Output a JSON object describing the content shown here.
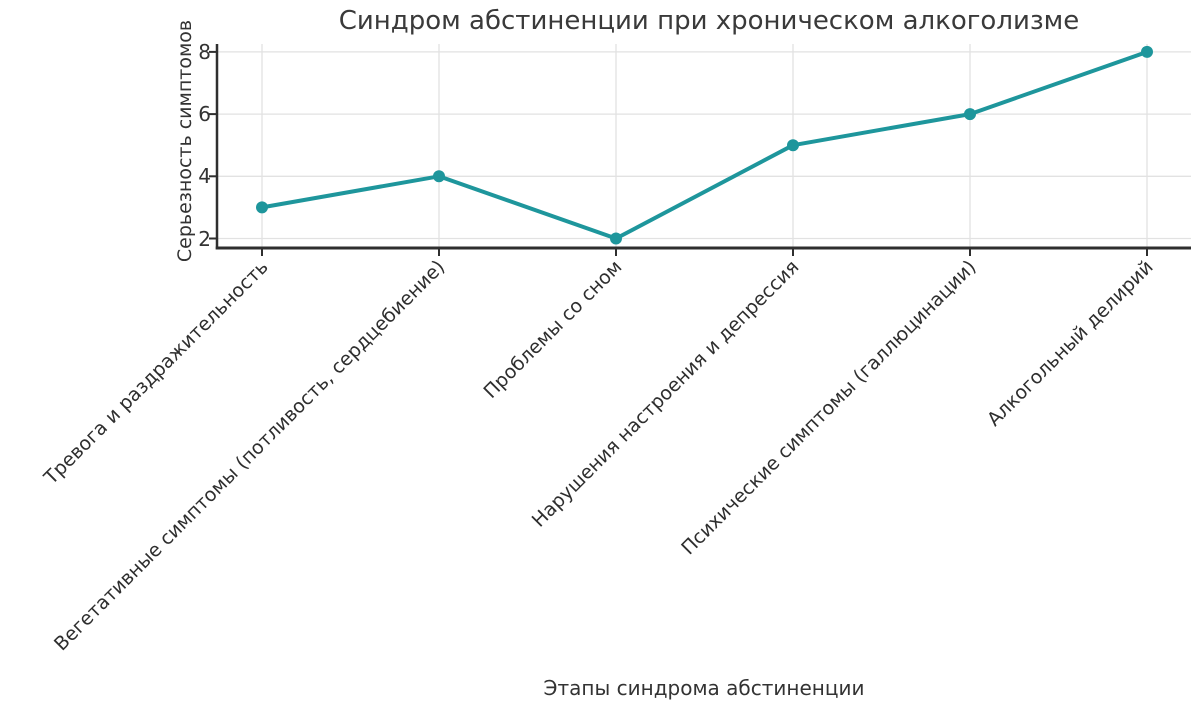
{
  "chart_data": {
    "type": "line",
    "title": "Синдром абстиненции при хроническом алкоголизме",
    "xlabel": "Этапы синдрома абстиненции",
    "ylabel": "Серьезность симптомов",
    "categories": [
      "Тревога и раздражительность",
      "Вегетативные симптомы (потливость, сердцебиение)",
      "Проблемы со сном",
      "Нарушения настроения и депрессия",
      "Психические симптомы (галлюцинации)",
      "Алкогольный делирий"
    ],
    "values": [
      3,
      4,
      2,
      5,
      6,
      8
    ],
    "yticks": [
      2,
      4,
      6,
      8
    ],
    "ylim": [
      2,
      8.3
    ],
    "grid": true,
    "legend_position": "none",
    "x_tick_rotation_deg": 45,
    "colors": {
      "line": "#1e969c",
      "marker": "#1e969c",
      "grid": "#e2e2e2",
      "axis": "#2f2f2f",
      "text": "#333333",
      "background": "#ffffff"
    }
  }
}
